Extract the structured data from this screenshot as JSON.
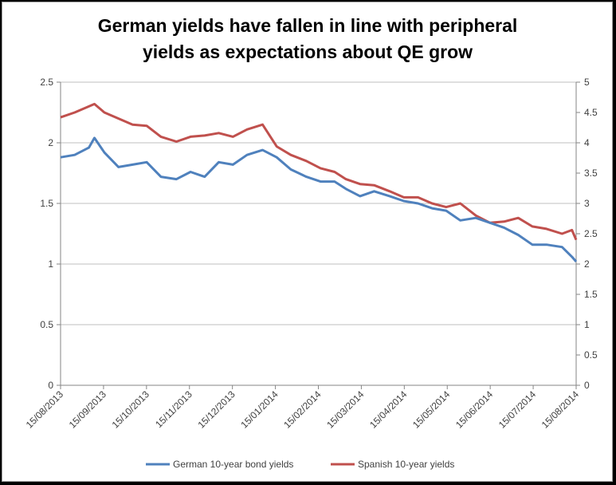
{
  "chart_data": {
    "type": "line",
    "title": [
      "German yields have fallen in line with peripheral",
      "yields as expectations about QE grow"
    ],
    "xlabel": "",
    "ylabel": "",
    "ylim": [
      0,
      2.5
    ],
    "y2lim": [
      0,
      5
    ],
    "y_ticks": [
      "0",
      "0.5",
      "1",
      "1.5",
      "2",
      "2.5"
    ],
    "y2_ticks": [
      "0",
      "0.5",
      "1",
      "1.5",
      "2",
      "2.5",
      "3",
      "3.5",
      "4",
      "4.5",
      "5"
    ],
    "x_ticks": [
      "15/08/2013",
      "15/09/2013",
      "15/10/2013",
      "15/11/2013",
      "15/12/2013",
      "15/01/2014",
      "15/02/2014",
      "15/03/2014",
      "15/04/2014",
      "15/05/2014",
      "15/06/2014",
      "15/07/2014",
      "15/08/2014"
    ],
    "grid": "horizontal",
    "legend_position": "bottom",
    "colors": {
      "german": "#4f81bd",
      "spanish": "#c0504d",
      "grid": "#bfbfbf",
      "axis": "#868686"
    },
    "x": [
      "2013-08-15",
      "2013-08-25",
      "2013-09-04",
      "2013-09-08",
      "2013-09-15",
      "2013-09-25",
      "2013-10-05",
      "2013-10-15",
      "2013-10-25",
      "2013-11-05",
      "2013-11-15",
      "2013-11-25",
      "2013-12-05",
      "2013-12-15",
      "2013-12-25",
      "2014-01-05",
      "2014-01-15",
      "2014-01-25",
      "2014-02-05",
      "2014-02-15",
      "2014-02-25",
      "2014-03-05",
      "2014-03-15",
      "2014-03-25",
      "2014-04-05",
      "2014-04-15",
      "2014-04-25",
      "2014-05-05",
      "2014-05-15",
      "2014-05-25",
      "2014-06-05",
      "2014-06-15",
      "2014-06-25",
      "2014-07-05",
      "2014-07-15",
      "2014-07-25",
      "2014-08-05",
      "2014-08-12",
      "2014-08-15"
    ],
    "series": [
      {
        "name": "German 10-year bond yields",
        "axis": "left",
        "values": [
          1.88,
          1.9,
          1.96,
          2.04,
          1.92,
          1.8,
          1.82,
          1.84,
          1.72,
          1.7,
          1.76,
          1.72,
          1.84,
          1.82,
          1.9,
          1.94,
          1.88,
          1.78,
          1.72,
          1.68,
          1.68,
          1.62,
          1.56,
          1.6,
          1.56,
          1.52,
          1.5,
          1.46,
          1.44,
          1.36,
          1.38,
          1.34,
          1.3,
          1.24,
          1.16,
          1.16,
          1.14,
          1.06,
          1.02
        ]
      },
      {
        "name": "Spanish 10-year yields",
        "axis": "right",
        "values": [
          4.42,
          4.5,
          4.6,
          4.64,
          4.5,
          4.4,
          4.3,
          4.28,
          4.1,
          4.02,
          4.1,
          4.12,
          4.16,
          4.1,
          4.22,
          4.3,
          3.94,
          3.8,
          3.7,
          3.58,
          3.52,
          3.4,
          3.32,
          3.3,
          3.2,
          3.1,
          3.1,
          3.0,
          2.94,
          3.0,
          2.8,
          2.68,
          2.7,
          2.76,
          2.62,
          2.58,
          2.5,
          2.56,
          2.4
        ]
      }
    ]
  }
}
